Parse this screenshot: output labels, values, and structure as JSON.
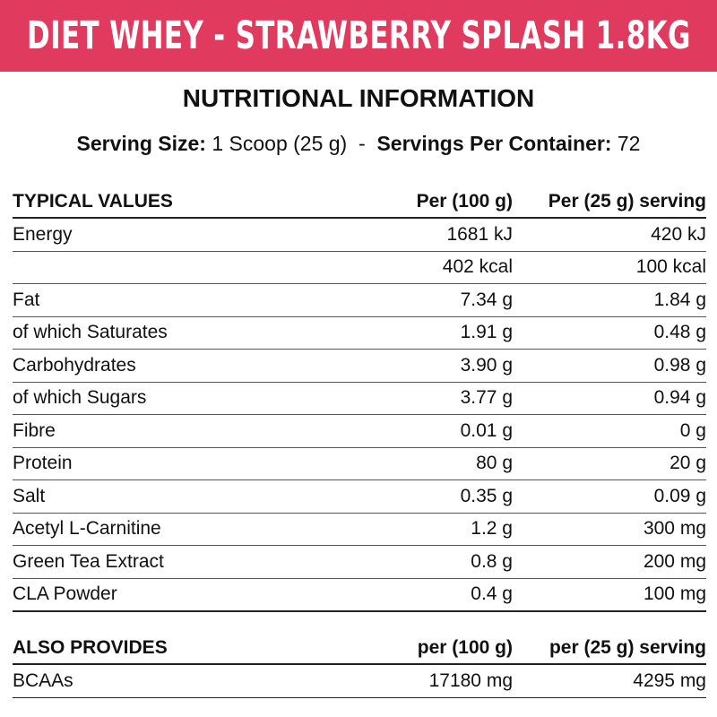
{
  "banner": {
    "title": "DIET WHEY - STRAWBERRY SPLASH 1.8KG",
    "color": "#e03a5e"
  },
  "heading": "NUTRITIONAL INFORMATION",
  "serving": {
    "size_label": "Serving Size:",
    "size_value": "1 Scoop (25 g)",
    "separator": "-",
    "per_container_label": "Servings Per Container:",
    "per_container_value": "72"
  },
  "nutrition": {
    "headers": [
      "TYPICAL VALUES",
      "Per (100 g)",
      "Per (25 g) serving"
    ],
    "rows": [
      [
        "Energy",
        "1681 kJ",
        "420 kJ"
      ],
      [
        "",
        "402 kcal",
        "100 kcal"
      ],
      [
        "Fat",
        "7.34 g",
        "1.84 g"
      ],
      [
        "of which Saturates",
        "1.91 g",
        "0.48 g"
      ],
      [
        "Carbohydrates",
        "3.90 g",
        "0.98 g"
      ],
      [
        "of which Sugars",
        "3.77 g",
        "0.94 g"
      ],
      [
        "Fibre",
        "0.01 g",
        "0 g"
      ],
      [
        "Protein",
        "80 g",
        "20 g"
      ],
      [
        "Salt",
        "0.35 g",
        "0.09 g"
      ],
      [
        "Acetyl L-Carnitine",
        "1.2 g",
        "300 mg"
      ],
      [
        "Green Tea Extract",
        "0.8 g",
        "200 mg"
      ],
      [
        "CLA Powder",
        "0.4 g",
        "100 mg"
      ]
    ]
  },
  "also_provides": {
    "headers": [
      "ALSO PROVIDES",
      "per (100 g)",
      "per (25 g) serving"
    ],
    "rows": [
      [
        "BCAAs",
        "17180 mg",
        "4295 mg"
      ]
    ]
  }
}
